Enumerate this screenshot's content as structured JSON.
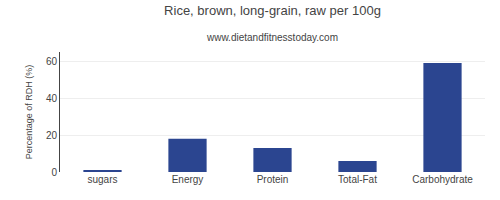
{
  "chart_data": {
    "type": "bar",
    "title": "Rice, brown, long-grain, raw per 100g",
    "subtitle": "www.dietandfitnesstoday.com",
    "categories": [
      "sugars",
      "Energy",
      "Protein",
      "Total-Fat",
      "Carbohydrate"
    ],
    "values": [
      1,
      18,
      13,
      6,
      59
    ],
    "color": "#2b4590",
    "ylabel": "Percentage of RDH (%)",
    "ylim": [
      0,
      65
    ],
    "yticks": [
      0,
      20,
      40,
      60
    ],
    "grid": true
  }
}
